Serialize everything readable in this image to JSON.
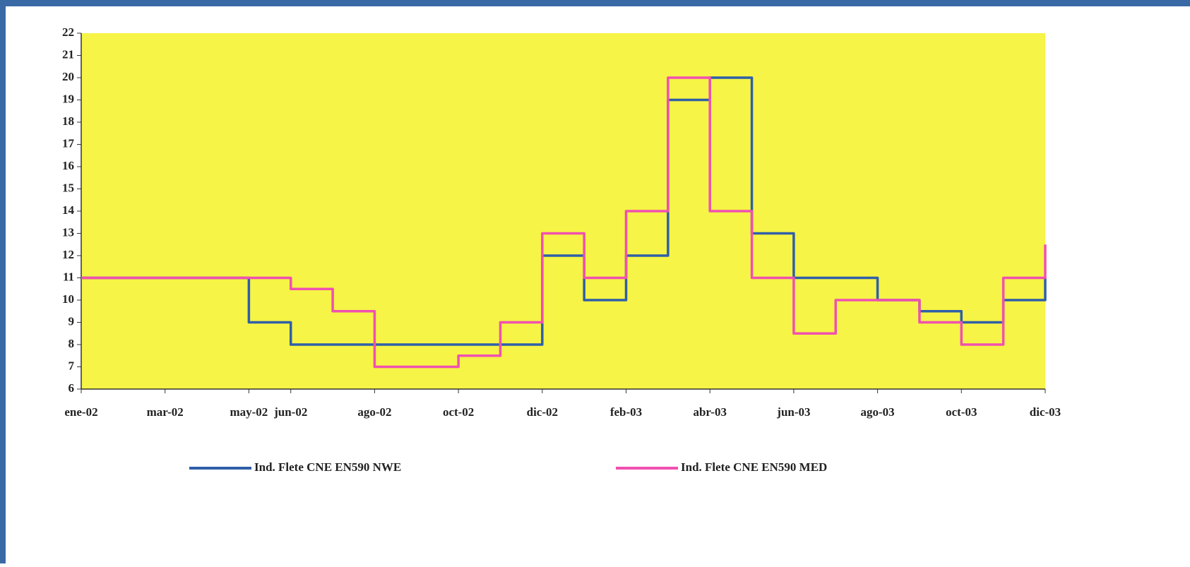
{
  "chart_data": {
    "type": "line",
    "step": true,
    "x": [
      "2002-01",
      "2002-02",
      "2002-03",
      "2002-04",
      "2002-05",
      "2002-06",
      "2002-07",
      "2002-08",
      "2002-09",
      "2002-10",
      "2002-11",
      "2002-12",
      "2003-01",
      "2003-02",
      "2003-03",
      "2003-04",
      "2003-05",
      "2003-06",
      "2003-07",
      "2003-08",
      "2003-09",
      "2003-10",
      "2003-11",
      "2003-12"
    ],
    "xlim": [
      "2002-01",
      "2003-12"
    ],
    "xticks": [
      {
        "value": "2002-01",
        "label": "ene-02"
      },
      {
        "value": "2002-03",
        "label": "mar-02"
      },
      {
        "value": "2002-05",
        "label": "may-02"
      },
      {
        "value": "2002-06",
        "label": "jun-02"
      },
      {
        "value": "2002-08",
        "label": "ago-02"
      },
      {
        "value": "2002-10",
        "label": "oct-02"
      },
      {
        "value": "2002-12",
        "label": "dic-02"
      },
      {
        "value": "2003-02",
        "label": "feb-03"
      },
      {
        "value": "2003-04",
        "label": "abr-03"
      },
      {
        "value": "2003-06",
        "label": "jun-03"
      },
      {
        "value": "2003-08",
        "label": "ago-03"
      },
      {
        "value": "2003-10",
        "label": "oct-03"
      },
      {
        "value": "2003-12",
        "label": "dic-03"
      }
    ],
    "ylim": [
      6,
      22
    ],
    "yticks": [
      6,
      7,
      8,
      9,
      10,
      11,
      12,
      13,
      14,
      15,
      16,
      17,
      18,
      19,
      20,
      21,
      22
    ],
    "grid": false,
    "series": [
      {
        "name": "Ind. Flete CNE EN590 NWE",
        "color": "#2f5fa8",
        "values": [
          11,
          11,
          11,
          11,
          9,
          8,
          8,
          8,
          8,
          8,
          8,
          12,
          10,
          12,
          19,
          20,
          13,
          11,
          11,
          10,
          9.5,
          9,
          10,
          11
        ]
      },
      {
        "name": "Ind. Flete CNE EN590 MED",
        "color": "#f050b0",
        "values": [
          11,
          11,
          11,
          11,
          11,
          10.5,
          9.5,
          7,
          7,
          7.5,
          9,
          13,
          11,
          14,
          20,
          14,
          11,
          8.5,
          10,
          10,
          9,
          8,
          11,
          12.5
        ]
      }
    ]
  }
}
